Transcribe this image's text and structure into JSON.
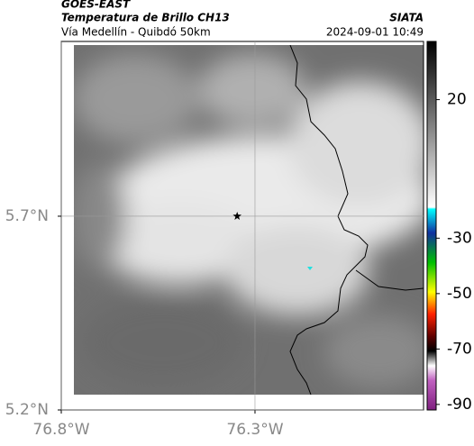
{
  "header": {
    "source": "GOES-EAST",
    "product": "Temperatura de Brillo CH13",
    "route": "Vía Medellín - Quibdó 50km",
    "org": "SIATA",
    "timestamp": "2024-09-01 10:49"
  },
  "map": {
    "xlim": [
      -76.8,
      -75.865
    ],
    "ylim": [
      5.2,
      6.151
    ],
    "xticks": [
      {
        "value": -76.8,
        "label": "76.8°W"
      },
      {
        "value": -76.3,
        "label": "76.3°W"
      }
    ],
    "yticks": [
      {
        "value": 5.2,
        "label": "5.2°N"
      },
      {
        "value": 5.7,
        "label": "5.7°N"
      }
    ],
    "grid": true,
    "marker": {
      "lon": -76.346,
      "lat": 5.7
    }
  },
  "colorbar": {
    "clim": [
      -92,
      41
    ],
    "ticks": [
      20,
      -30,
      -50,
      -70,
      -90
    ]
  }
}
